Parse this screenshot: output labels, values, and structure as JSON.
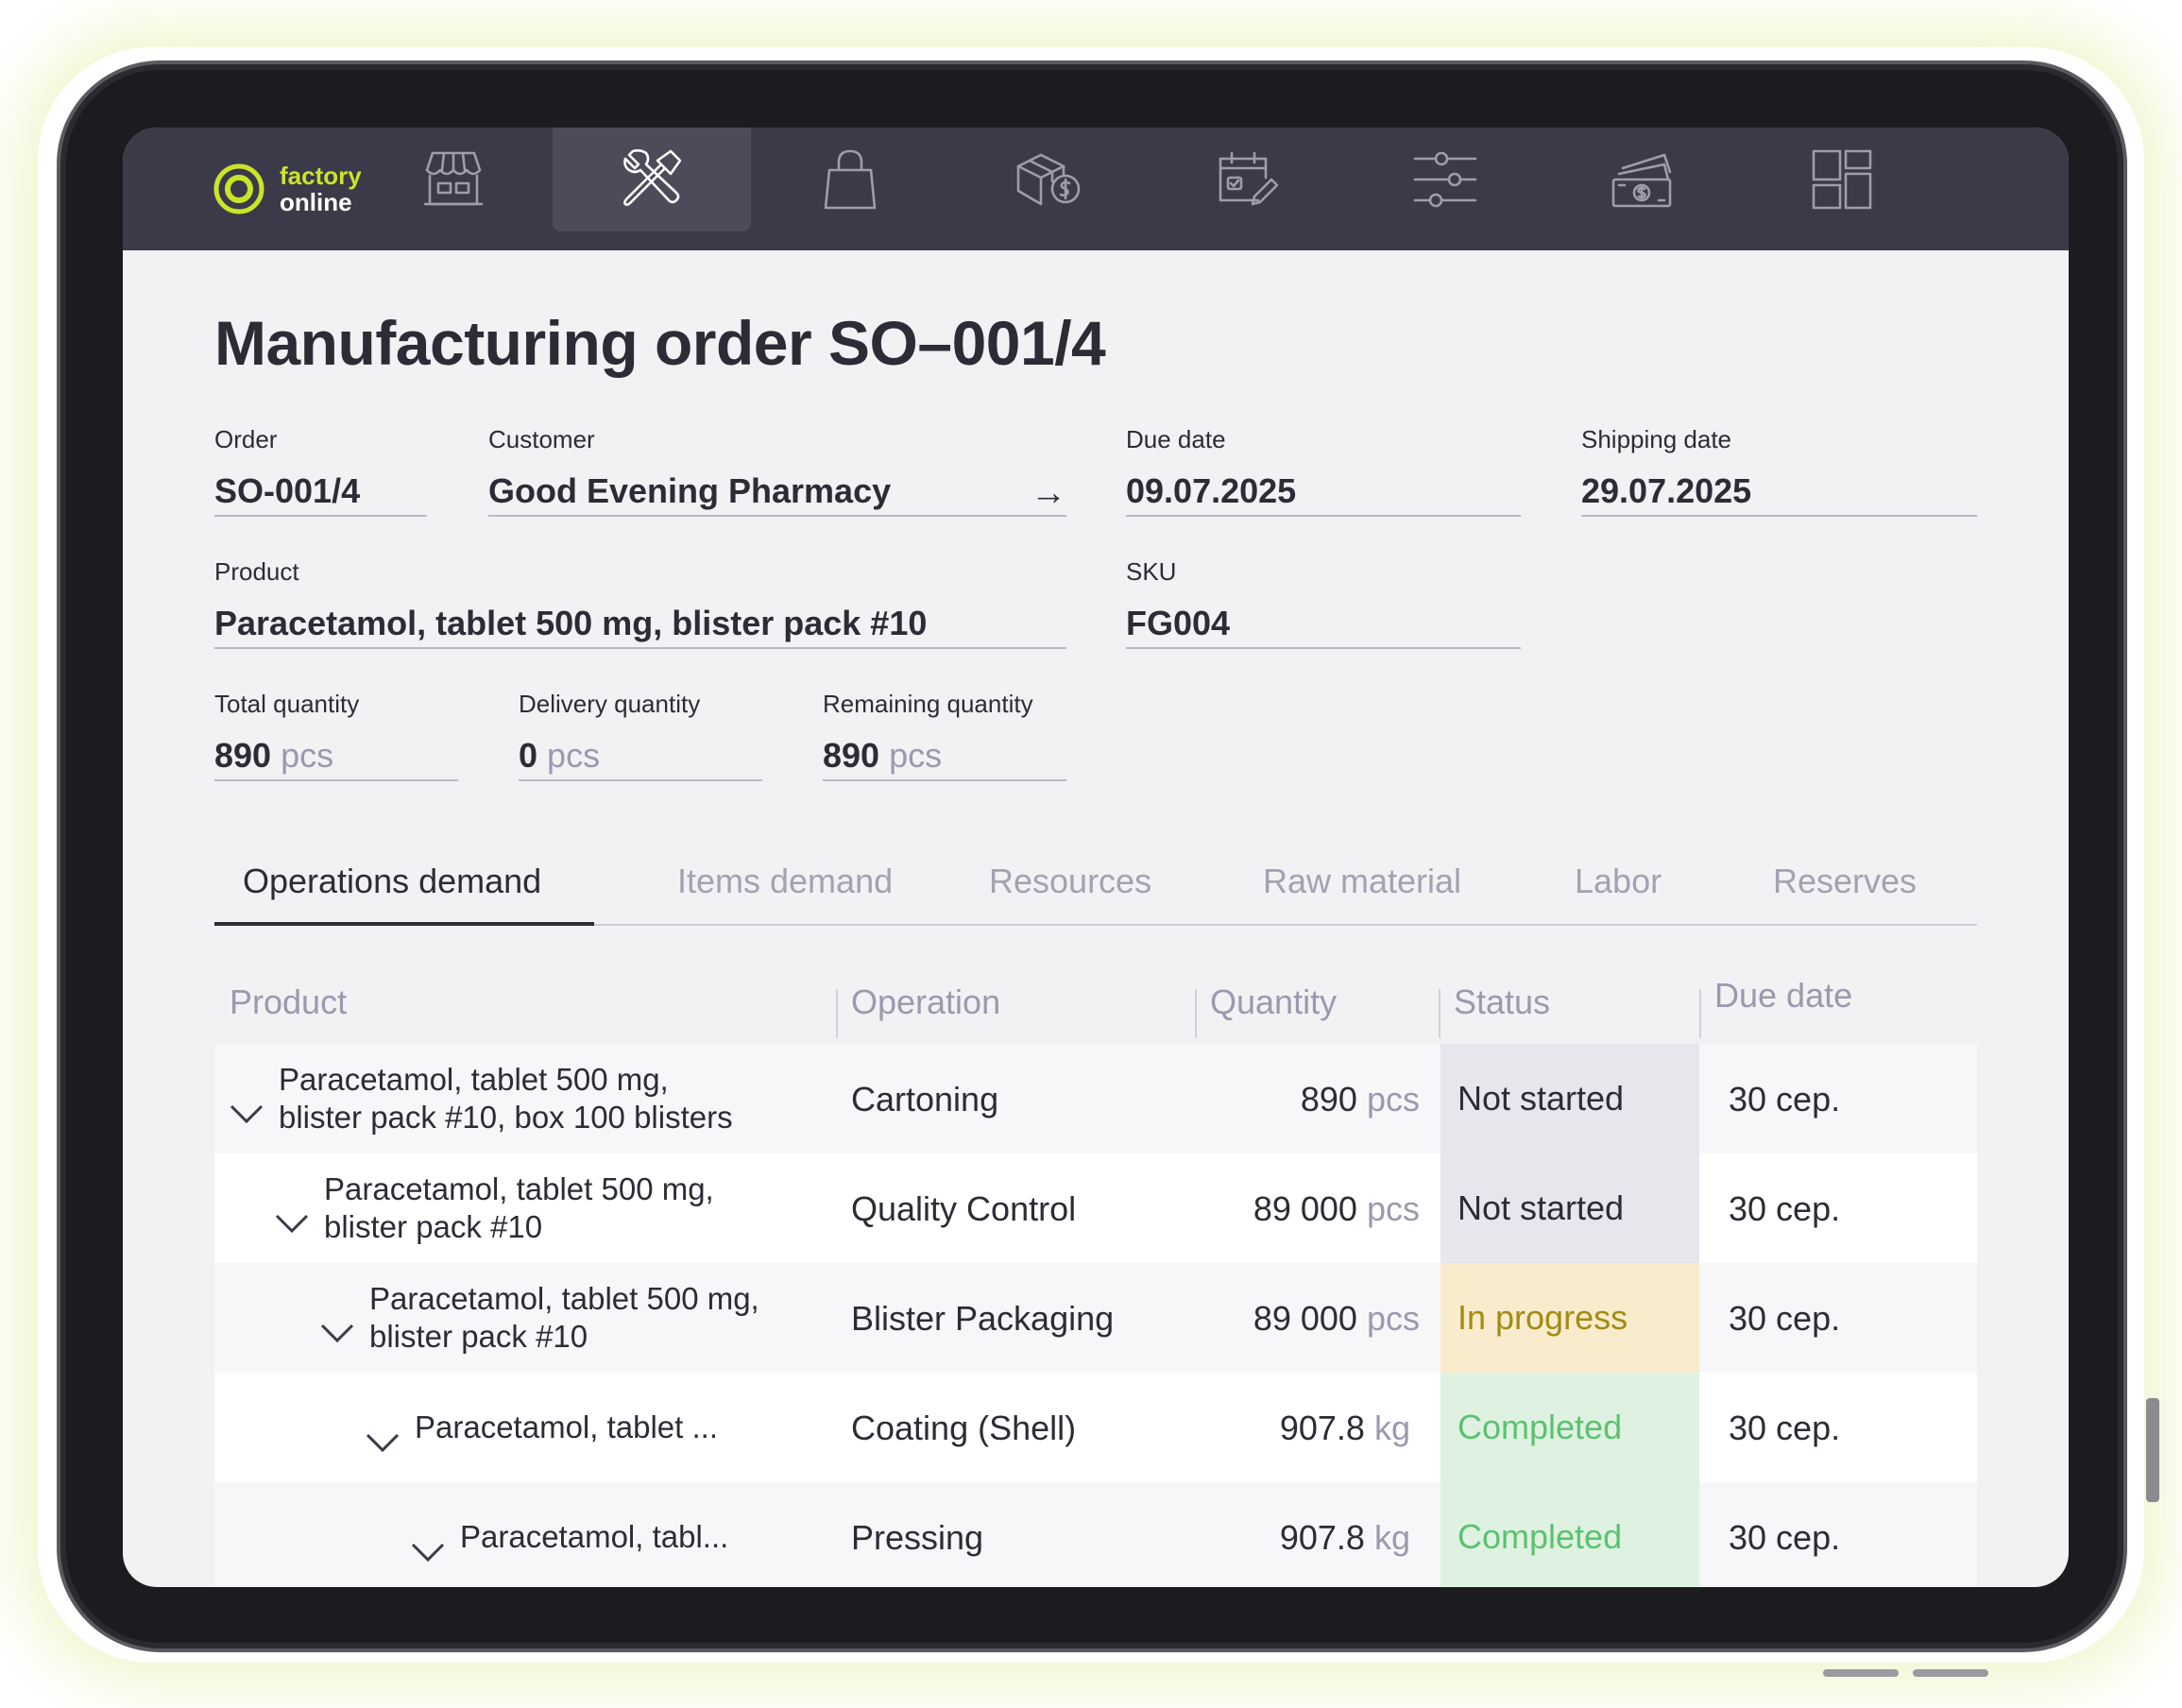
{
  "nav": {
    "logo": {
      "line1": "factory",
      "line2": "online"
    },
    "icons": [
      "store-icon",
      "tools-icon",
      "shopping-bag-icon",
      "package-dollar-icon",
      "calendar-edit-icon",
      "sliders-icon",
      "money-icon",
      "dashboard-icon"
    ],
    "active_index": 1
  },
  "page": {
    "title": "Manufacturing order SO–001/4"
  },
  "fields": {
    "order": {
      "label": "Order",
      "value": "SO-001/4"
    },
    "customer": {
      "label": "Customer",
      "value": "Good Evening Pharmacy"
    },
    "due_date": {
      "label": "Due date",
      "value": "09.07.2025"
    },
    "shipping_date": {
      "label": "Shipping date",
      "value": "29.07.2025"
    },
    "product": {
      "label": "Product",
      "value": "Paracetamol, tablet 500 mg, blister pack #10"
    },
    "sku": {
      "label": "SKU",
      "value": "FG004"
    },
    "total_quantity": {
      "label": "Total quantity",
      "value": "890",
      "unit": "pcs"
    },
    "delivery_quantity": {
      "label": "Delivery quantity",
      "value": "0",
      "unit": "pcs"
    },
    "remaining_quantity": {
      "label": "Remaining quantity",
      "value": "890",
      "unit": "pcs"
    }
  },
  "tabs": [
    "Operations demand",
    "Items demand",
    "Resources",
    "Raw material",
    "Labor",
    "Reserves"
  ],
  "active_tab": 0,
  "table": {
    "headers": {
      "product": "Product",
      "operation": "Operation",
      "quantity": "Quantity",
      "status": "Status",
      "due_date": "Due date"
    },
    "rows": [
      {
        "product_line1": "Paracetamol, tablet 500 mg,",
        "product_line2": "blister pack #10, box 100 blisters",
        "operation": "Cartoning",
        "qty": "890",
        "unit": "pcs",
        "status": "Not started",
        "status_type": "not-started",
        "due": "30 сер.",
        "level": 0
      },
      {
        "product_line1": "Paracetamol, tablet 500 mg,",
        "product_line2": "blister pack #10",
        "operation": "Quality Control",
        "qty": "89 000",
        "unit": "pcs",
        "status": "Not started",
        "status_type": "not-started",
        "due": "30 сер.",
        "level": 1
      },
      {
        "product_line1": "Paracetamol, tablet 500 mg,",
        "product_line2": "blister pack #10",
        "operation": "Blister Packaging",
        "qty": "89 000",
        "unit": "pcs",
        "status": "In progress",
        "status_type": "in-progress",
        "due": "30 сер.",
        "level": 2
      },
      {
        "product_line1": "Paracetamol, tablet ...",
        "product_line2": "",
        "operation": "Coating (Shell)",
        "qty": "907.8",
        "unit": "kg",
        "status": "Completed",
        "status_type": "completed",
        "due": "30 сер.",
        "level": 3
      },
      {
        "product_line1": "Paracetamol, tabl...",
        "product_line2": "",
        "operation": "Pressing",
        "qty": "907.8",
        "unit": "kg",
        "status": "Completed",
        "status_type": "completed",
        "due": "30 сер.",
        "level": 4
      }
    ]
  },
  "colors": {
    "nav_bg": "#3a3a48",
    "accent_logo": "#cde32a",
    "status_not_started": "#e6e6ec",
    "status_in_progress": "#f8eccd",
    "status_completed": "#dff2e2"
  }
}
